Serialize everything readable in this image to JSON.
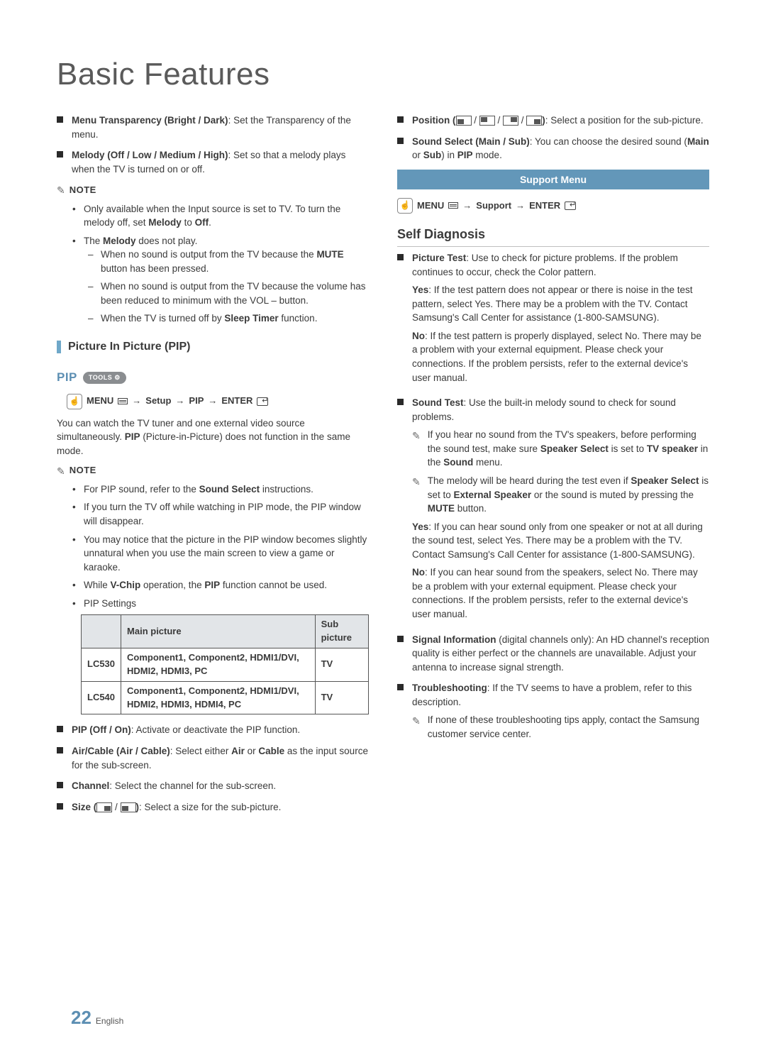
{
  "page": {
    "title": "Basic Features",
    "number": "22",
    "lang": "English"
  },
  "colors": {
    "accent": "#6397b9",
    "accent_text": "#5d8fb3",
    "body": "#3a3a3a",
    "pill": "#8a8d90"
  },
  "left": {
    "menu_trans": {
      "label": "Menu Transparency (Bright / Dark)",
      "desc": ": Set the Transparency of the menu."
    },
    "melody": {
      "label": "Melody (Off / Low / Medium / High)",
      "desc": ": Set so that a melody plays when the TV is turned on or off."
    },
    "note_label": "NOTE",
    "note1": {
      "b1_pre": "Only available when the Input source is set to TV. To turn the melody off, set ",
      "b1_b1": "Melody",
      "b1_mid": " to ",
      "b1_b2": "Off",
      "b1_end": ".",
      "b2_pre": "The ",
      "b2_b": "Melody",
      "b2_end": " does not play.",
      "d1_pre": "When no sound is output from the TV because the ",
      "d1_b": "MUTE",
      "d1_end": " button has been pressed.",
      "d2": "When no sound is output from the TV because the volume has been reduced to minimum with the VOL – button.",
      "d3_pre": "When the TV is turned off by ",
      "d3_b": "Sleep Timer",
      "d3_end": " function."
    },
    "sect_pip": "Picture In Picture (PIP)",
    "pip_label": "PIP",
    "tools": "TOOLS",
    "menu_path": {
      "m": "MENU",
      "a": "→",
      "setup": "Setup",
      "pip": "PIP",
      "enter": "ENTER"
    },
    "pip_desc_pre": "You can watch the TV tuner and one external video source simultaneously. ",
    "pip_desc_b": "PIP",
    "pip_desc_end": " (Picture-in-Picture) does not function in the same mode.",
    "note2": {
      "b1_pre": "For PIP sound, refer to the ",
      "b1_b": "Sound Select",
      "b1_end": " instructions.",
      "b2": "If you turn the TV off while watching in PIP mode, the PIP window will disappear.",
      "b3": "You may notice that the picture in the PIP window becomes slightly unnatural when you use the main screen to view a game or karaoke.",
      "b4_pre": "While ",
      "b4_b1": "V-Chip",
      "b4_mid": " operation, the ",
      "b4_b2": "PIP",
      "b4_end": " function cannot be used.",
      "b5": "PIP Settings"
    },
    "table": {
      "h_main": "Main picture",
      "h_sub": "Sub picture",
      "r1_model": "LC530",
      "r1_main": "Component1, Component2, HDMI1/DVI, HDMI2, HDMI3, PC",
      "r1_sub": "TV",
      "r2_model": "LC540",
      "r2_main": "Component1, Component2, HDMI1/DVI, HDMI2, HDMI3, HDMI4, PC",
      "r2_sub": "TV"
    },
    "opts": {
      "o1_b": "PIP (Off / On)",
      "o1_t": ": Activate or deactivate the PIP function.",
      "o2_b": "Air/Cable (Air / Cable)",
      "o2_pre": ": Select either ",
      "o2_b2": "Air",
      "o2_or": " or ",
      "o2_b3": "Cable",
      "o2_end": " as the input source for the sub-screen.",
      "o3_b": "Channel",
      "o3_t": ": Select the channel for the sub-screen.",
      "o4_b": "Size (",
      "o4_end": ": Select a size for the sub-picture."
    }
  },
  "right": {
    "pos_b": "Position (",
    "pos_end": ": Select a position for the sub-picture.",
    "ss_b": "Sound Select (Main / Sub)",
    "ss_pre": ": You can choose the desired sound (",
    "ss_b2": "Main",
    "ss_or": " or ",
    "ss_b3": "Sub",
    "ss_mid": ") in ",
    "ss_b4": "PIP",
    "ss_end": " mode.",
    "support_band": "Support Menu",
    "menu_path": {
      "m": "MENU",
      "a": "→",
      "support": "Support",
      "enter": "ENTER"
    },
    "self_title": "Self Diagnosis",
    "pic_b": "Picture Test",
    "pic_t": ": Use to check for picture problems. If the problem continues to occur, check the Color pattern.",
    "pic_yes_b": "Yes",
    "pic_yes_t": ": If the test pattern does not appear or there is noise in the test pattern, select Yes. There may be a problem with the TV. Contact Samsung's Call Center for assistance (1-800-SAMSUNG).",
    "pic_no_b": "No",
    "pic_no_t": ": If the test pattern is properly displayed, select No. There may be a problem with your external equipment. Please check your connections. If the problem persists, refer to the external device's user manual.",
    "snd_b": "Sound Test",
    "snd_t": ": Use the built-in melody sound to check for sound problems.",
    "snd_n1_pre": "If you hear no sound from the TV's speakers, before performing the sound test, make sure ",
    "snd_n1_b1": "Speaker Select",
    "snd_n1_mid": " is set to ",
    "snd_n1_b2": "TV speaker",
    "snd_n1_mid2": " in the ",
    "snd_n1_b3": "Sound",
    "snd_n1_end": " menu.",
    "snd_n2_pre": "The melody will be heard during the test even if ",
    "snd_n2_b1": "Speaker Select",
    "snd_n2_mid": " is set to ",
    "snd_n2_b2": "External Speaker",
    "snd_n2_mid2": " or the sound is muted by pressing the ",
    "snd_n2_b3": "MUTE",
    "snd_n2_end": " button.",
    "snd_yes_b": "Yes",
    "snd_yes_t": ": If you can hear sound only from one speaker or not at all during the sound test, select Yes. There may be a problem with the TV. Contact Samsung's Call Center for assistance (1-800-SAMSUNG).",
    "snd_no_b": "No",
    "snd_no_t": ": If you can hear sound from the speakers, select No. There may be a problem with your external equipment. Please check your connections. If the problem persists, refer to the external device's user manual.",
    "sig_b": "Signal Information",
    "sig_t": " (digital channels only): An HD channel's reception quality is either perfect or the channels are unavailable. Adjust your antenna to increase signal strength.",
    "trb_b": "Troubleshooting",
    "trb_t": ": If the TV seems to have a problem, refer to this description.",
    "trb_n": "If none of these troubleshooting tips apply, contact the Samsung customer service center."
  }
}
